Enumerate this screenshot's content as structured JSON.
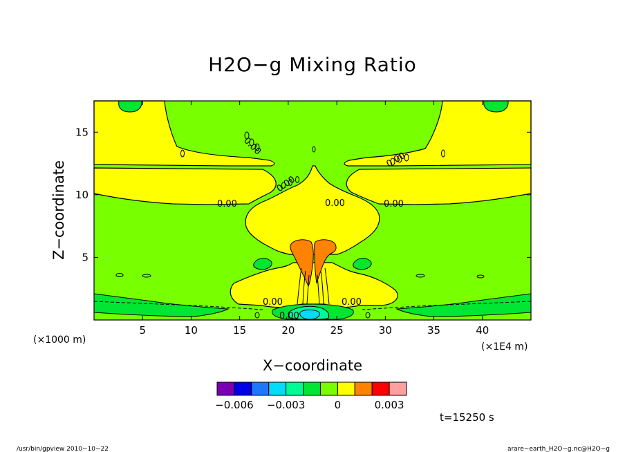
{
  "chart_data": {
    "type": "contour",
    "title": "H2O−g Mixing Ratio",
    "xlabel": "X−coordinate",
    "ylabel": "Z−coordinate",
    "x_tick_labels": [
      "5",
      "10",
      "15",
      "20",
      "25",
      "30",
      "35",
      "40"
    ],
    "x_ticks": [
      5,
      10,
      15,
      20,
      25,
      30,
      35,
      40
    ],
    "y_tick_labels": [
      "5",
      "10",
      "15"
    ],
    "y_ticks": [
      5,
      10,
      15
    ],
    "xlim": [
      0,
      45
    ],
    "ylim": [
      0,
      17.5
    ],
    "z_unit": "(×1000 m)",
    "x_unit": "(×1E4 m)",
    "contour_labels": [
      "0.00",
      "0.00",
      "0.00",
      "0.00",
      "0.00",
      "0.00",
      "0.00",
      "0.00",
      "0.00"
    ],
    "colorbar": {
      "tick_labels": [
        "−0.006",
        "−0.003",
        "0",
        "0.003"
      ],
      "colors": [
        "#7a00b4",
        "#0000e6",
        "#1e78ff",
        "#00dcfa",
        "#00fa96",
        "#00e632",
        "#78ff00",
        "#ffff00",
        "#ff8200",
        "#ff0000",
        "#ffa0a0"
      ]
    },
    "time_label": "t=15250 s",
    "footer_left": "/usr/bin/gpview  2010−10−22",
    "footer_right": "arare−earth_H2O−g.nc@H2O−g"
  }
}
